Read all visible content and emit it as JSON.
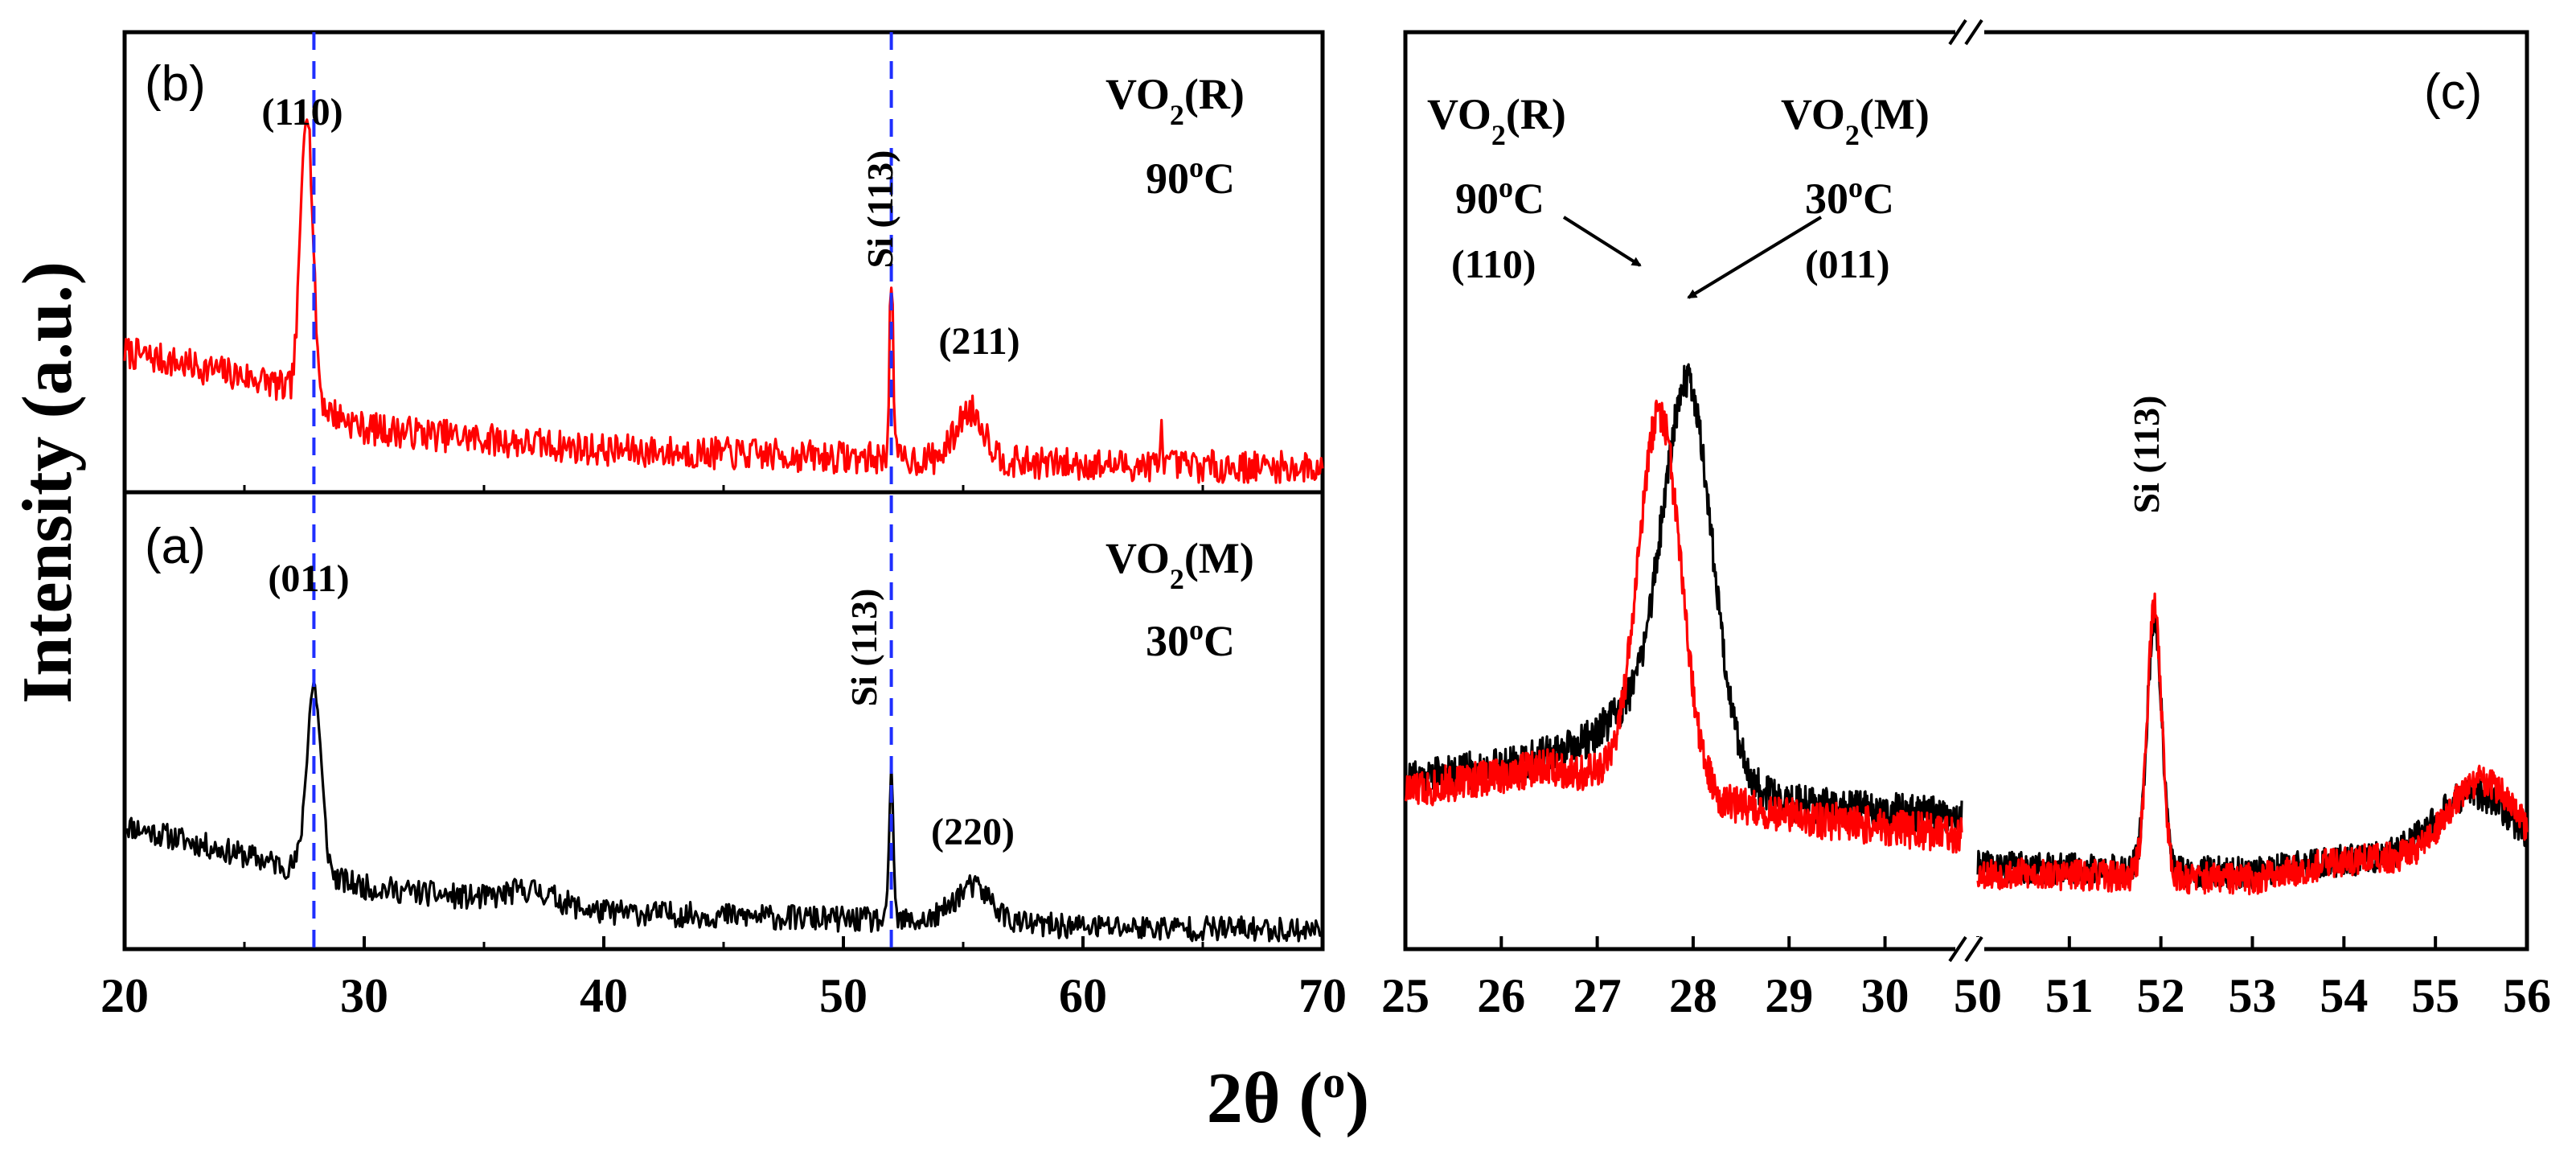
{
  "figure": {
    "ylabel": "Intensity (a.u.)",
    "xlabel": "2θ (",
    "xlabel_unit": "o",
    "xlabel_close": ")"
  },
  "chart_data": [
    {
      "id": "b",
      "type": "line",
      "panel_label": "(b)",
      "phase": "VO",
      "phase_sub": "2",
      "phase_tail": "(R)",
      "temp": "90",
      "temp_sup": "o",
      "temp_unit": "C",
      "color": "#ff0000",
      "xlim": [
        20,
        70
      ],
      "ylim": [
        0,
        1
      ],
      "xticks": [],
      "peaks_labels": [
        {
          "text": "(110)",
          "x": 27.6,
          "y": 0.93
        },
        {
          "text": "(211)",
          "x": 55.3,
          "y": 0.38
        }
      ],
      "si_label": {
        "text": "Si (113)",
        "x": 52.0,
        "y": 0.62
      },
      "series": [
        {
          "name": "VO2(R) 90°C",
          "peaks": [
            [
              27.6,
              0.82,
              0.25
            ],
            [
              52.0,
              0.5,
              0.08
            ],
            [
              55.3,
              0.14,
              0.6
            ],
            [
              63.3,
              0.1,
              0.05
            ]
          ],
          "baseline": [
            [
              20,
              0.36
            ],
            [
              26,
              0.28
            ],
            [
              30,
              0.15
            ],
            [
              40,
              0.09
            ],
            [
              50,
              0.07
            ],
            [
              60,
              0.05
            ],
            [
              70,
              0.04
            ]
          ],
          "noise": 0.045,
          "seed": 7
        }
      ]
    },
    {
      "id": "a",
      "type": "line",
      "panel_label": "(a)",
      "phase": "VO",
      "phase_sub": "2",
      "phase_tail": "(M)",
      "temp": "30",
      "temp_sup": "o",
      "temp_unit": "C",
      "color": "#000000",
      "xlim": [
        20,
        70
      ],
      "ylim": [
        0,
        1
      ],
      "xticks": [
        20,
        30,
        40,
        50,
        60,
        70
      ],
      "peaks_labels": [
        {
          "text": "(011)",
          "x": 27.9,
          "y": 0.8
        },
        {
          "text": "(220)",
          "x": 55.4,
          "y": 0.23
        }
      ],
      "si_label": {
        "text": "Si (113)",
        "x": 52.0,
        "y": 0.5
      },
      "series": [
        {
          "name": "VO2(M) 30°C",
          "peaks": [
            [
              27.9,
              0.52,
              0.3
            ],
            [
              52.0,
              0.43,
              0.08
            ],
            [
              55.4,
              0.1,
              0.8
            ],
            [
              37.0,
              0.04,
              1.0
            ]
          ],
          "baseline": [
            [
              20,
              0.32
            ],
            [
              26,
              0.22
            ],
            [
              30,
              0.15
            ],
            [
              40,
              0.08
            ],
            [
              50,
              0.06
            ],
            [
              60,
              0.04
            ],
            [
              70,
              0.03
            ]
          ],
          "noise": 0.035,
          "seed": 11
        }
      ],
      "vlines": [
        27.9,
        52.0
      ]
    },
    {
      "id": "c-left",
      "type": "line",
      "panel_label": "(c)",
      "xlim": [
        25,
        30.8
      ],
      "ylim": [
        0,
        1
      ],
      "xticks": [
        25,
        26,
        27,
        28,
        29,
        30
      ],
      "annotations": [
        {
          "phase": "VO",
          "sub": "2",
          "tail": "(R)",
          "temp": "90",
          "sup": "o",
          "unit": "C",
          "hkl": "(110)"
        },
        {
          "phase": "VO",
          "sub": "2",
          "tail": "(M)",
          "temp": "30",
          "sup": "o",
          "unit": "C",
          "hkl": "(011)"
        }
      ],
      "series": [
        {
          "name": "VO2(M) 30°C",
          "color": "#000000",
          "peaks": [
            [
              27.95,
              0.55,
              0.25
            ],
            [
              27.6,
              0.12,
              0.5
            ]
          ],
          "baseline": [
            [
              25,
              0.22
            ],
            [
              26.5,
              0.25
            ],
            [
              29,
              0.18
            ],
            [
              30.8,
              0.16
            ]
          ],
          "noise": 0.03,
          "seed": 21
        },
        {
          "name": "VO2(R) 90°C",
          "color": "#ff0000",
          "peaks": [
            [
              27.65,
              0.6,
              0.22
            ]
          ],
          "baseline": [
            [
              25,
              0.2
            ],
            [
              26.5,
              0.24
            ],
            [
              29,
              0.16
            ],
            [
              30.8,
              0.13
            ]
          ],
          "noise": 0.03,
          "seed": 33
        }
      ]
    },
    {
      "id": "c-right",
      "type": "line",
      "xlim": [
        50,
        56
      ],
      "ylim": [
        0,
        1
      ],
      "xticks": [
        50,
        51,
        52,
        53,
        54,
        55,
        56
      ],
      "si_label": {
        "text": "Si (113)",
        "x": 51.95,
        "y": 0.62
      },
      "series": [
        {
          "name": "VO2(M) 30°C",
          "color": "#000000",
          "peaks": [
            [
              51.93,
              0.4,
              0.08
            ],
            [
              55.4,
              0.1,
              0.4
            ]
          ],
          "baseline": [
            [
              50,
              0.08
            ],
            [
              53,
              0.07
            ],
            [
              54,
              0.09
            ],
            [
              56,
              0.1
            ]
          ],
          "noise": 0.025,
          "seed": 41
        },
        {
          "name": "VO2(R) 90°C",
          "color": "#ff0000",
          "peaks": [
            [
              51.93,
              0.43,
              0.08
            ],
            [
              55.5,
              0.12,
              0.35
            ]
          ],
          "baseline": [
            [
              50,
              0.07
            ],
            [
              53,
              0.06
            ],
            [
              54,
              0.09
            ],
            [
              56,
              0.1
            ]
          ],
          "noise": 0.025,
          "seed": 53
        }
      ]
    }
  ]
}
